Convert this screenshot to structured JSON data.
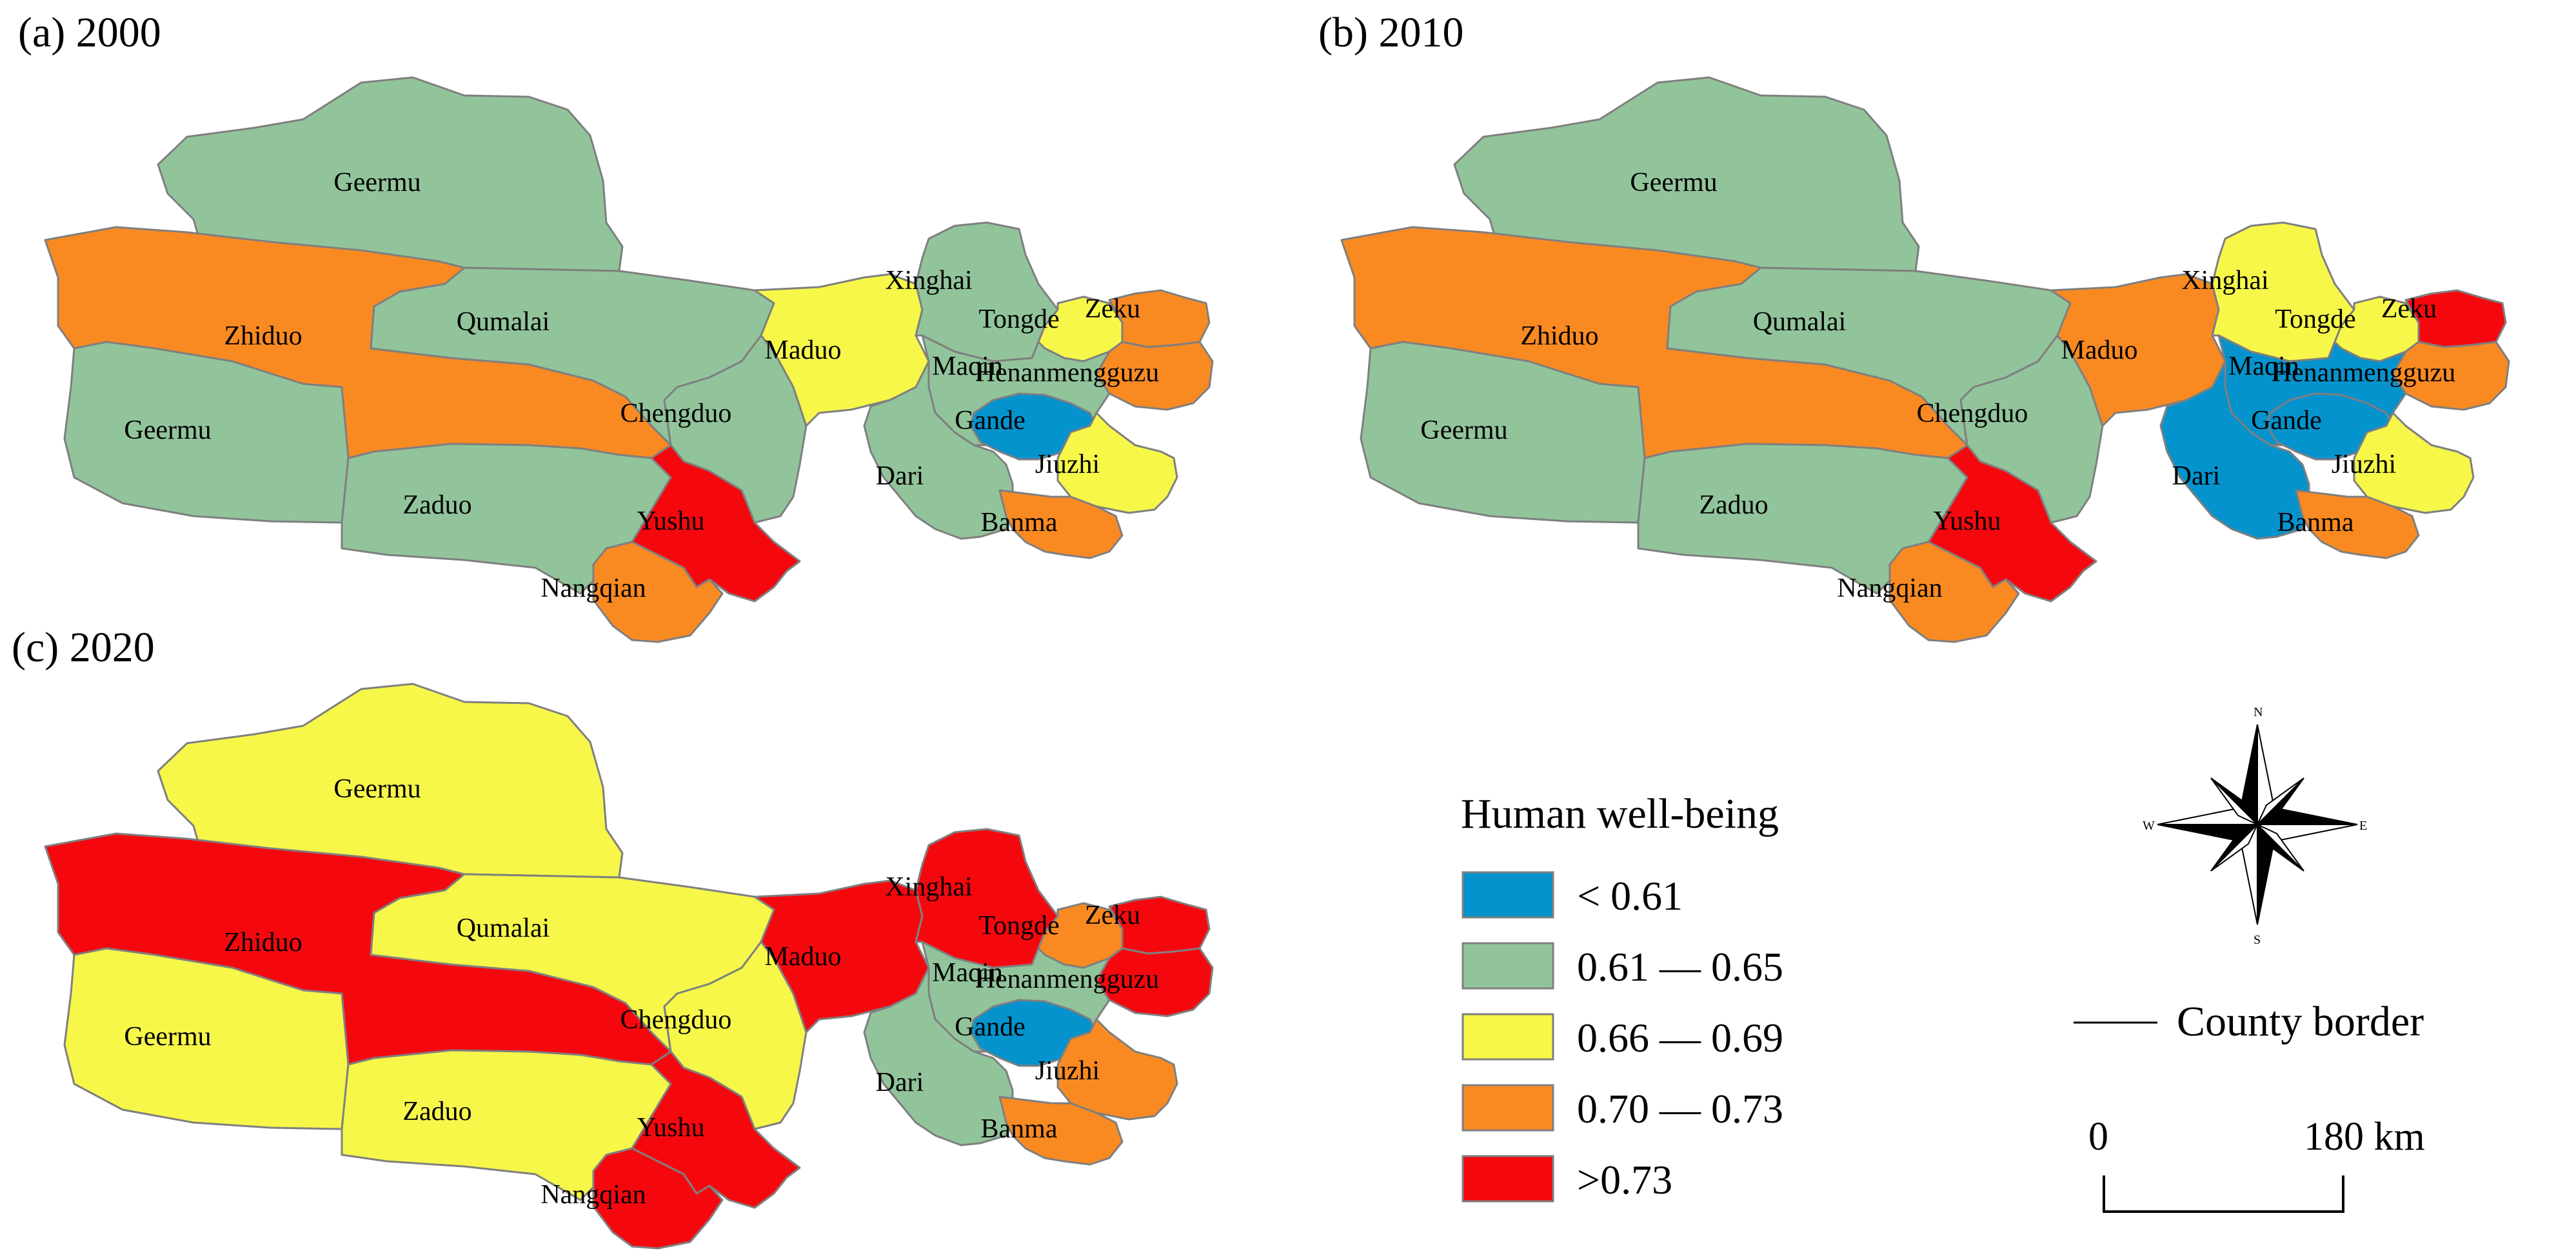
{
  "colors": {
    "lt_0_61": "#0593cd",
    "r_0_61_0_65": "#92c49b",
    "r_0_66_0_69": "#f7f74a",
    "r_0_70_0_73": "#f98a22",
    "gt_0_73": "#f4080e",
    "border": "#7f7f7f"
  },
  "panels": [
    {
      "title": "(a) 2000",
      "counties": [
        {
          "id": "geermu_n",
          "label": "Geermu",
          "class": "r_0_61_0_65"
        },
        {
          "id": "zhiduo",
          "label": "Zhiduo",
          "class": "r_0_70_0_73"
        },
        {
          "id": "geermu_s",
          "label": "Geermu",
          "class": "r_0_61_0_65"
        },
        {
          "id": "qumalai",
          "label": "Qumalai",
          "class": "r_0_61_0_65"
        },
        {
          "id": "zaduo",
          "label": "Zaduo",
          "class": "r_0_61_0_65"
        },
        {
          "id": "chengduo",
          "label": "Chengduo",
          "class": "r_0_61_0_65"
        },
        {
          "id": "yushu",
          "label": "Yushu",
          "class": "gt_0_73"
        },
        {
          "id": "nangqian",
          "label": "Nangqian",
          "class": "r_0_70_0_73"
        },
        {
          "id": "maduo",
          "label": "Maduo",
          "class": "r_0_66_0_69"
        },
        {
          "id": "xinghai",
          "label": "Xinghai",
          "class": "r_0_61_0_65"
        },
        {
          "id": "tongde",
          "label": "Tongde",
          "class": "r_0_66_0_69"
        },
        {
          "id": "zeku",
          "label": "Zeku",
          "class": "r_0_70_0_73"
        },
        {
          "id": "henan",
          "label": "Henanmengguzu",
          "class": "r_0_70_0_73"
        },
        {
          "id": "maqin",
          "label": "Maqin",
          "class": "r_0_61_0_65"
        },
        {
          "id": "gande",
          "label": "Gande",
          "class": "lt_0_61"
        },
        {
          "id": "dari",
          "label": "Dari",
          "class": "r_0_61_0_65"
        },
        {
          "id": "jiuzhi",
          "label": "Jiuzhi",
          "class": "r_0_66_0_69"
        },
        {
          "id": "banma",
          "label": "Banma",
          "class": "r_0_70_0_73"
        }
      ]
    },
    {
      "title": "(b) 2010",
      "counties": [
        {
          "id": "geermu_n",
          "label": "Geermu",
          "class": "r_0_61_0_65"
        },
        {
          "id": "zhiduo",
          "label": "Zhiduo",
          "class": "r_0_70_0_73"
        },
        {
          "id": "geermu_s",
          "label": "Geermu",
          "class": "r_0_61_0_65"
        },
        {
          "id": "qumalai",
          "label": "Qumalai",
          "class": "r_0_61_0_65"
        },
        {
          "id": "zaduo",
          "label": "Zaduo",
          "class": "r_0_61_0_65"
        },
        {
          "id": "chengduo",
          "label": "Chengduo",
          "class": "r_0_61_0_65"
        },
        {
          "id": "yushu",
          "label": "Yushu",
          "class": "gt_0_73"
        },
        {
          "id": "nangqian",
          "label": "Nangqian",
          "class": "r_0_70_0_73"
        },
        {
          "id": "maduo",
          "label": "Maduo",
          "class": "r_0_70_0_73"
        },
        {
          "id": "xinghai",
          "label": "Xinghai",
          "class": "r_0_66_0_69"
        },
        {
          "id": "tongde",
          "label": "Tongde",
          "class": "r_0_66_0_69"
        },
        {
          "id": "zeku",
          "label": "Zeku",
          "class": "gt_0_73"
        },
        {
          "id": "henan",
          "label": "Henanmengguzu",
          "class": "r_0_70_0_73"
        },
        {
          "id": "maqin",
          "label": "Maqin",
          "class": "lt_0_61"
        },
        {
          "id": "gande",
          "label": "Gande",
          "class": "lt_0_61"
        },
        {
          "id": "dari",
          "label": "Dari",
          "class": "lt_0_61"
        },
        {
          "id": "jiuzhi",
          "label": "Jiuzhi",
          "class": "r_0_66_0_69"
        },
        {
          "id": "banma",
          "label": "Banma",
          "class": "r_0_70_0_73"
        }
      ]
    },
    {
      "title": "(c) 2020",
      "counties": [
        {
          "id": "geermu_n",
          "label": "Geermu",
          "class": "r_0_66_0_69"
        },
        {
          "id": "zhiduo",
          "label": "Zhiduo",
          "class": "gt_0_73"
        },
        {
          "id": "geermu_s",
          "label": "Geermu",
          "class": "r_0_66_0_69"
        },
        {
          "id": "qumalai",
          "label": "Qumalai",
          "class": "r_0_66_0_69"
        },
        {
          "id": "zaduo",
          "label": "Zaduo",
          "class": "r_0_66_0_69"
        },
        {
          "id": "chengduo",
          "label": "Chengduo",
          "class": "r_0_66_0_69"
        },
        {
          "id": "yushu",
          "label": "Yushu",
          "class": "gt_0_73"
        },
        {
          "id": "nangqian",
          "label": "Nangqian",
          "class": "gt_0_73"
        },
        {
          "id": "maduo",
          "label": "Maduo",
          "class": "gt_0_73"
        },
        {
          "id": "xinghai",
          "label": "Xinghai",
          "class": "gt_0_73"
        },
        {
          "id": "tongde",
          "label": "Tongde",
          "class": "r_0_70_0_73"
        },
        {
          "id": "zeku",
          "label": "Zeku",
          "class": "gt_0_73"
        },
        {
          "id": "henan",
          "label": "Henanmengguzu",
          "class": "gt_0_73"
        },
        {
          "id": "maqin",
          "label": "Maqin",
          "class": "r_0_61_0_65"
        },
        {
          "id": "gande",
          "label": "Gande",
          "class": "lt_0_61"
        },
        {
          "id": "dari",
          "label": "Dari",
          "class": "r_0_61_0_65"
        },
        {
          "id": "jiuzhi",
          "label": "Jiuzhi",
          "class": "r_0_70_0_73"
        },
        {
          "id": "banma",
          "label": "Banma",
          "class": "r_0_70_0_73"
        }
      ]
    }
  ],
  "legend": {
    "title": "Human well-being",
    "items": [
      {
        "class": "lt_0_61",
        "label": "< 0.61"
      },
      {
        "class": "r_0_61_0_65",
        "label": "0.61 — 0.65"
      },
      {
        "class": "r_0_66_0_69",
        "label": "0.66 — 0.69"
      },
      {
        "class": "r_0_70_0_73",
        "label": "0.70 — 0.73"
      },
      {
        "class": "gt_0_73",
        "label": ">0.73"
      }
    ],
    "county_border_label": "County border"
  },
  "compass": {
    "n": "N",
    "s": "S",
    "e": "E",
    "w": "W"
  },
  "scale_bar": {
    "start_label": "0",
    "end_label": "180 km"
  }
}
